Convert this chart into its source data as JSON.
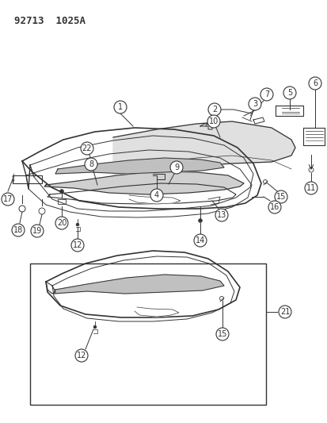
{
  "title": "92713  1025A",
  "bg_color": "#ffffff",
  "line_color": "#333333",
  "title_fontsize": 9,
  "label_fontsize": 7,
  "fig_width": 4.14,
  "fig_height": 5.33,
  "dpi": 100
}
